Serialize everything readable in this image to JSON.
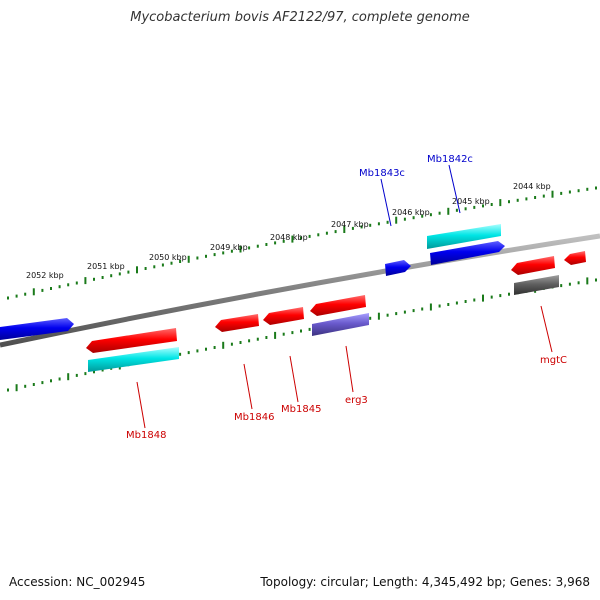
{
  "title": "Mycobacterium bovis AF2122/97, complete genome",
  "footer": {
    "accession": "Accession: NC_002945",
    "summary": "Topology: circular; Length: 4,345,492 bp; Genes: 3,968"
  },
  "ticks": [
    "2052 kbp",
    "2051 kbp",
    "2050 kbp",
    "2049 kbp",
    "2048 kbp",
    "2047 kbp",
    "2046 kbp",
    "2045 kbp",
    "2044 kbp"
  ],
  "gene_labels": {
    "mb1843c": "Mb1843c",
    "mb1842c": "Mb1842c",
    "mb1848": "Mb1848",
    "mb1846": "Mb1846",
    "mb1845": "Mb1845",
    "erg3": "erg3",
    "mgtc": "mgtC"
  },
  "colors": {
    "backbone": "#808080",
    "tick_green": "#1a7a1a",
    "gene_red": "#ff0000",
    "gene_blue": "#0000ee",
    "gene_cyan": "#00e5e5",
    "gene_purple": "#6a5acd",
    "gene_gray": "#606060",
    "label_red": "#cc0000",
    "label_blue": "#0000cc"
  }
}
